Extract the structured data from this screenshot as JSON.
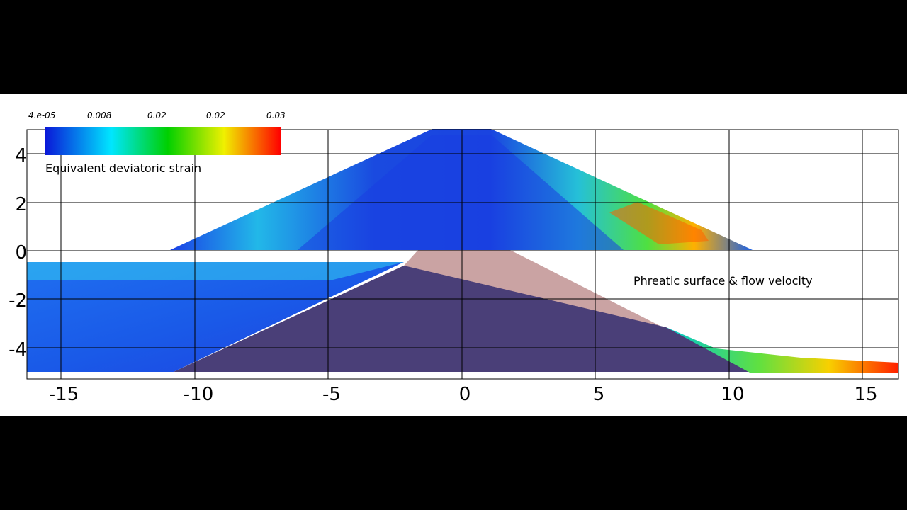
{
  "colorbar": {
    "title": "Equivalent deviatoric strain",
    "ticks": [
      "4.e-05",
      "0.008",
      "0.02",
      "0.02",
      "0.03"
    ],
    "colors": [
      "#0a18d8",
      "#00e6ff",
      "#00d000",
      "#f0f000",
      "#ff0000"
    ]
  },
  "annotation": "Phreatic surface & flow velocity",
  "axes": {
    "x_ticks": [
      "-15",
      "-10",
      "-5",
      "0",
      "5",
      "10",
      "15"
    ],
    "y_ticks": [
      "4",
      "2",
      "0",
      "-2",
      "-4"
    ],
    "x_range": [
      -16.5,
      16.5
    ],
    "y_range": [
      -5,
      5
    ]
  },
  "colors": {
    "background": "#000000",
    "plot_background": "#ffffff",
    "grid": "#000000",
    "pore_region": "#4a3f78",
    "dry_dam": "#caa3a3"
  }
}
